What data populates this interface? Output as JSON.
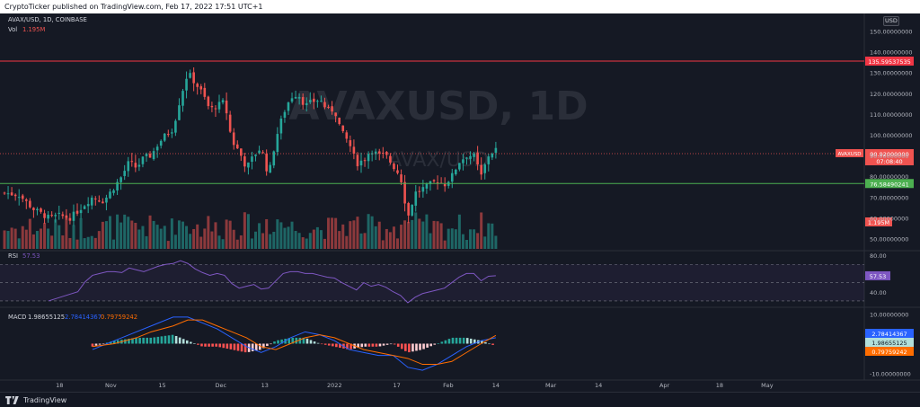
{
  "header": {
    "text": "CryptoTicker published on TradingView.com, Feb 17, 2022 17:51 UTC+1"
  },
  "footer": {
    "logo_text": "TradingView"
  },
  "currency_badge": "USD",
  "legend": {
    "symbol_line": "AVAX/USD, 1D, COINBASE",
    "vol_label": "Vol",
    "vol_value": "1.195M"
  },
  "watermark": {
    "big": "AVAXUSD, 1D",
    "small": "AVAX/USD"
  },
  "rsi_legend": {
    "label": "RSI",
    "value": "57.53"
  },
  "macd_legend": {
    "label": "MACD",
    "macd": "1.98655125",
    "signal": "2.78414367",
    "hist": "0.79759242"
  },
  "colors": {
    "up": "#26a69a",
    "down": "#ef5350",
    "rsi_line": "#7e57c2",
    "macd_line": "#2962ff",
    "signal_line": "#ff6d00",
    "resistance": "#f23645",
    "support": "#4caf50"
  },
  "chart_data": [
    {
      "type": "candlestick",
      "title": "AVAX/USD, 1D, COINBASE",
      "y_unit": "USD",
      "ylim": [
        45,
        155
      ],
      "y_ticks": [
        "150.00000000",
        "140.00000000",
        "130.00000000",
        "120.00000000",
        "110.00000000",
        "100.00000000",
        "90.00000000",
        "80.00000000",
        "70.00000000",
        "60.00000000",
        "50.00000000"
      ],
      "y_tick_values": [
        150,
        140,
        130,
        120,
        110,
        100,
        90,
        80,
        70,
        60,
        50
      ],
      "x_ticks": [
        {
          "label": "18",
          "index": 15
        },
        {
          "label": "Nov",
          "index": 29
        },
        {
          "label": "15",
          "index": 43
        },
        {
          "label": "Dec",
          "index": 59
        },
        {
          "label": "13",
          "index": 71
        },
        {
          "label": "2022",
          "index": 90
        },
        {
          "label": "17",
          "index": 107
        },
        {
          "label": "Feb",
          "index": 121
        },
        {
          "label": "14",
          "index": 134
        },
        {
          "label": "Mar",
          "index": 149
        },
        {
          "label": "14",
          "index": 162
        },
        {
          "label": "Apr",
          "index": 180
        },
        {
          "label": "18",
          "index": 195
        },
        {
          "label": "May",
          "index": 208
        }
      ],
      "x_index_range": [
        0,
        234
      ],
      "horizontal_lines": [
        {
          "name": "resistance",
          "value": 135.5,
          "label": "135.59537535",
          "color": "#f23645"
        },
        {
          "name": "support",
          "value": 76.5,
          "label": "76.58490241",
          "color": "#4caf50"
        }
      ],
      "last_price": {
        "value": 90.92,
        "label": "90.92000000",
        "countdown": "07:08:40",
        "symbol_tag": "AVAXUSD"
      },
      "volume_label": "1.195M",
      "close_path": [
        [
          0,
          72
        ],
        [
          4,
          71
        ],
        [
          8,
          64
        ],
        [
          12,
          60
        ],
        [
          15,
          61
        ],
        [
          18,
          60
        ],
        [
          21,
          65
        ],
        [
          24,
          70
        ],
        [
          27,
          68
        ],
        [
          30,
          75
        ],
        [
          32,
          80
        ],
        [
          34,
          87
        ],
        [
          36,
          84
        ],
        [
          38,
          89
        ],
        [
          40,
          90
        ],
        [
          42,
          96
        ],
        [
          44,
          100
        ],
        [
          46,
          103
        ],
        [
          48,
          118
        ],
        [
          50,
          130
        ],
        [
          52,
          125
        ],
        [
          54,
          120
        ],
        [
          56,
          112
        ],
        [
          58,
          114
        ],
        [
          60,
          116
        ],
        [
          62,
          97
        ],
        [
          64,
          92
        ],
        [
          66,
          84
        ],
        [
          68,
          90
        ],
        [
          70,
          94
        ],
        [
          72,
          80
        ],
        [
          74,
          98
        ],
        [
          76,
          110
        ],
        [
          78,
          118
        ],
        [
          80,
          120
        ],
        [
          82,
          114
        ],
        [
          84,
          116
        ],
        [
          86,
          117
        ],
        [
          88,
          112
        ],
        [
          90,
          112
        ],
        [
          92,
          101
        ],
        [
          94,
          96
        ],
        [
          96,
          86
        ],
        [
          98,
          88
        ],
        [
          100,
          93
        ],
        [
          102,
          90
        ],
        [
          104,
          90
        ],
        [
          106,
          85
        ],
        [
          108,
          80
        ],
        [
          110,
          60
        ],
        [
          112,
          72
        ],
        [
          114,
          74
        ],
        [
          116,
          76
        ],
        [
          118,
          78
        ],
        [
          120,
          76
        ],
        [
          122,
          80
        ],
        [
          124,
          87
        ],
        [
          126,
          90
        ],
        [
          128,
          90
        ],
        [
          130,
          80
        ],
        [
          132,
          90
        ],
        [
          134,
          93
        ]
      ],
      "candle_count": 136
    },
    {
      "type": "line",
      "title": "RSI",
      "value": 57.53,
      "ylim": [
        25,
        85
      ],
      "y_ticks": [
        "80.00",
        "40.00"
      ],
      "y_tick_values": [
        80,
        40
      ],
      "band": [
        30,
        70
      ],
      "path": [
        [
          12,
          30
        ],
        [
          16,
          35
        ],
        [
          20,
          40
        ],
        [
          22,
          51
        ],
        [
          24,
          58
        ],
        [
          26,
          60
        ],
        [
          28,
          62
        ],
        [
          30,
          62
        ],
        [
          32,
          61
        ],
        [
          34,
          66
        ],
        [
          36,
          64
        ],
        [
          38,
          62
        ],
        [
          40,
          65
        ],
        [
          42,
          68
        ],
        [
          44,
          70
        ],
        [
          46,
          71
        ],
        [
          48,
          74
        ],
        [
          50,
          71
        ],
        [
          52,
          65
        ],
        [
          54,
          61
        ],
        [
          56,
          58
        ],
        [
          58,
          60
        ],
        [
          60,
          58
        ],
        [
          62,
          49
        ],
        [
          64,
          44
        ],
        [
          66,
          46
        ],
        [
          68,
          48
        ],
        [
          70,
          43
        ],
        [
          72,
          44
        ],
        [
          74,
          52
        ],
        [
          76,
          60
        ],
        [
          78,
          62
        ],
        [
          80,
          62
        ],
        [
          82,
          60
        ],
        [
          84,
          60
        ],
        [
          86,
          58
        ],
        [
          88,
          56
        ],
        [
          90,
          55
        ],
        [
          92,
          50
        ],
        [
          94,
          46
        ],
        [
          96,
          42
        ],
        [
          98,
          50
        ],
        [
          100,
          46
        ],
        [
          102,
          48
        ],
        [
          104,
          45
        ],
        [
          106,
          40
        ],
        [
          108,
          36
        ],
        [
          110,
          28
        ],
        [
          112,
          34
        ],
        [
          114,
          38
        ],
        [
          116,
          40
        ],
        [
          118,
          42
        ],
        [
          120,
          44
        ],
        [
          122,
          50
        ],
        [
          124,
          56
        ],
        [
          126,
          60
        ],
        [
          128,
          60
        ],
        [
          130,
          52
        ],
        [
          132,
          57
        ],
        [
          134,
          57.53
        ]
      ]
    },
    {
      "type": "line",
      "title": "MACD",
      "ylim": [
        -12,
        12
      ],
      "y_ticks": [
        "10.00000000",
        "0.00000000",
        "-10.00000000"
      ],
      "y_tick_values": [
        10,
        0,
        -10
      ],
      "series": [
        {
          "name": "MACD",
          "values": [
            [
              24,
              -2
            ],
            [
              30,
              1
            ],
            [
              36,
              4
            ],
            [
              40,
              6
            ],
            [
              46,
              9
            ],
            [
              50,
              9
            ],
            [
              54,
              7
            ],
            [
              58,
              5
            ],
            [
              62,
              2
            ],
            [
              66,
              -1
            ],
            [
              70,
              -3
            ],
            [
              74,
              -1
            ],
            [
              78,
              2
            ],
            [
              82,
              4
            ],
            [
              86,
              3
            ],
            [
              90,
              1
            ],
            [
              94,
              -2
            ],
            [
              98,
              -3
            ],
            [
              102,
              -4
            ],
            [
              106,
              -4
            ],
            [
              110,
              -8
            ],
            [
              114,
              -9
            ],
            [
              118,
              -7
            ],
            [
              122,
              -4
            ],
            [
              126,
              -1
            ],
            [
              130,
              1
            ],
            [
              134,
              2
            ]
          ]
        },
        {
          "name": "Signal",
          "values": [
            [
              24,
              -1
            ],
            [
              30,
              0
            ],
            [
              36,
              2
            ],
            [
              40,
              4
            ],
            [
              46,
              6
            ],
            [
              50,
              8
            ],
            [
              54,
              8
            ],
            [
              58,
              6
            ],
            [
              62,
              4
            ],
            [
              66,
              2
            ],
            [
              70,
              -1
            ],
            [
              74,
              -2
            ],
            [
              78,
              0
            ],
            [
              82,
              2
            ],
            [
              86,
              3
            ],
            [
              90,
              2
            ],
            [
              94,
              0
            ],
            [
              98,
              -2
            ],
            [
              102,
              -3
            ],
            [
              106,
              -4
            ],
            [
              110,
              -5
            ],
            [
              114,
              -7
            ],
            [
              118,
              -7
            ],
            [
              122,
              -6
            ],
            [
              126,
              -3
            ],
            [
              130,
              0
            ],
            [
              134,
              2.8
            ]
          ]
        }
      ]
    }
  ]
}
